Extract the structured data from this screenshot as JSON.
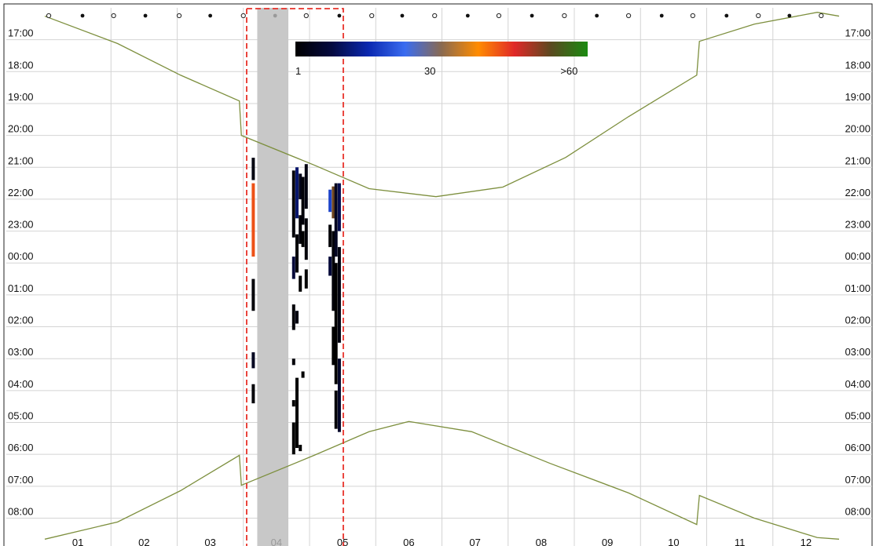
{
  "chart_data": {
    "type": "activity",
    "xlim": [
      0.5,
      12.5
    ],
    "xticks": [
      {
        "value": 1,
        "label": "01"
      },
      {
        "value": 2,
        "label": "02"
      },
      {
        "value": 3,
        "label": "03"
      },
      {
        "value": 4,
        "label": "04"
      },
      {
        "value": 5,
        "label": "05"
      },
      {
        "value": 6,
        "label": "06"
      },
      {
        "value": 7,
        "label": "07"
      },
      {
        "value": 8,
        "label": "08"
      },
      {
        "value": 9,
        "label": "09"
      },
      {
        "value": 10,
        "label": "10"
      },
      {
        "value": 11,
        "label": "11"
      },
      {
        "value": 12,
        "label": "12"
      }
    ],
    "x_gridlines": [
      1.5,
      2.5,
      3.5,
      4.5,
      5.5,
      6.5,
      7.5,
      8.5,
      9.5,
      10.5,
      11.5
    ],
    "ylim": [
      16.0,
      32.8
    ],
    "y_inverted": true,
    "yticks": [
      {
        "value": 17,
        "label": "17:00"
      },
      {
        "value": 18,
        "label": "18:00"
      },
      {
        "value": 19,
        "label": "19:00"
      },
      {
        "value": 20,
        "label": "20:00"
      },
      {
        "value": 21,
        "label": "21:00"
      },
      {
        "value": 22,
        "label": "22:00"
      },
      {
        "value": 23,
        "label": "23:00"
      },
      {
        "value": 24,
        "label": "00:00"
      },
      {
        "value": 25,
        "label": "01:00"
      },
      {
        "value": 26,
        "label": "02:00"
      },
      {
        "value": 27,
        "label": "03:00"
      },
      {
        "value": 28,
        "label": "04:00"
      },
      {
        "value": 29,
        "label": "05:00"
      },
      {
        "value": 30,
        "label": "06:00"
      },
      {
        "value": 31,
        "label": "07:00"
      },
      {
        "value": 32,
        "label": "08:00"
      }
    ],
    "grid": true,
    "series": [
      {
        "color": "#7d8f3e",
        "x": [
          0.5,
          1.6,
          2.55,
          3.44,
          3.47,
          4.57,
          5.4,
          6.41,
          7.42,
          8.37,
          9.32,
          10.35,
          10.39,
          11.22,
          12.17,
          12.5
        ],
        "values": [
          16.26,
          17.12,
          18.11,
          18.92,
          20.0,
          20.93,
          21.67,
          21.92,
          21.62,
          20.69,
          19.41,
          18.11,
          17.05,
          16.51,
          16.14,
          16.26
        ]
      },
      {
        "color": "#7d8f3e",
        "x": [
          0.5,
          1.6,
          2.55,
          3.44,
          3.47,
          4.57,
          5.4,
          6.0,
          6.95,
          8.13,
          9.32,
          10.35,
          10.39,
          11.22,
          12.17,
          12.5
        ],
        "values": [
          32.66,
          32.12,
          31.14,
          30.03,
          30.97,
          30.03,
          29.29,
          28.97,
          29.29,
          30.28,
          31.21,
          32.2,
          31.29,
          32.0,
          32.61,
          32.66
        ]
      }
    ],
    "moon": {
      "full": [
        0.56,
        1.54,
        2.53,
        3.5,
        4.45,
        5.44,
        6.39,
        7.36,
        8.35,
        9.32,
        10.29,
        11.28,
        12.23
      ],
      "new": [
        1.07,
        2.02,
        3.0,
        3.98,
        4.95,
        5.9,
        6.89,
        7.86,
        8.84,
        9.82,
        10.8,
        11.75
      ]
    },
    "shaded_range": [
      3.71,
      4.18
    ],
    "highlight_range": [
      3.55,
      5.01
    ],
    "colorbar": {
      "clim": [
        1,
        64
      ],
      "colors": [
        "#000000",
        "#050a40",
        "#0a28b0",
        "#3a6cf0",
        "#8a6a50",
        "#ff8c00",
        "#e02828",
        "#5a4a20",
        "#1a8a10"
      ],
      "ticks": [
        1,
        30,
        {
          "value": 60,
          "label": ">60"
        }
      ]
    },
    "activity": {
      "x": [
        3.65,
        3.65,
        3.65,
        3.65,
        3.65,
        4.26,
        4.26,
        4.26,
        4.26,
        4.26,
        4.26,
        4.31,
        4.31,
        4.31,
        4.31,
        4.36,
        4.36,
        4.36,
        4.36,
        4.4,
        4.4,
        4.4,
        4.45,
        4.45,
        4.45,
        4.81,
        4.81,
        4.81,
        4.86,
        4.86,
        4.86,
        4.9,
        4.9,
        4.9,
        4.95,
        4.95,
        4.95
      ],
      "start": [
        20.7,
        21.5,
        24.5,
        26.8,
        27.8,
        21.1,
        23.8,
        25.3,
        27.0,
        28.3,
        29.0,
        21.0,
        23.1,
        25.5,
        27.6,
        21.2,
        22.5,
        24.4,
        29.7,
        21.3,
        23.0,
        27.4,
        20.9,
        22.6,
        24.2,
        21.7,
        22.8,
        23.8,
        21.6,
        23.0,
        26.0,
        21.5,
        24.0,
        28.0,
        21.5,
        23.5,
        27.0
      ],
      "end": [
        21.4,
        23.8,
        25.5,
        27.3,
        28.4,
        23.2,
        24.5,
        26.1,
        27.2,
        28.5,
        30.0,
        22.6,
        24.3,
        25.9,
        29.8,
        22.0,
        23.4,
        24.9,
        29.9,
        22.8,
        23.5,
        27.6,
        22.3,
        23.9,
        24.8,
        22.4,
        23.5,
        24.4,
        22.6,
        25.5,
        27.2,
        23.8,
        27.8,
        29.2,
        23.0,
        26.5,
        29.3
      ],
      "values": [
        3,
        45,
        2,
        5,
        2,
        2,
        8,
        2,
        2,
        1,
        1,
        12,
        2,
        3,
        1,
        4,
        2,
        1,
        1,
        2,
        1,
        1,
        3,
        2,
        1,
        20,
        2,
        8,
        55,
        2,
        1,
        5,
        1,
        2,
        10,
        3,
        6
      ]
    }
  }
}
